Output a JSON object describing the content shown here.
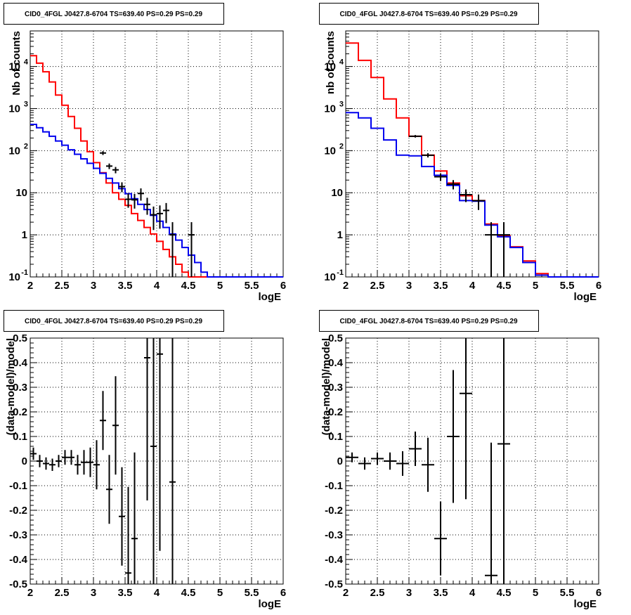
{
  "chart_data": [
    {
      "type": "step-histogram-with-errorbars",
      "title": "CID0_4FGL J0427.8-6704 TS=639.40 PS=0.29 PS=0.29",
      "xlabel": "logE",
      "ylabel": "Nb of counts",
      "xlim": [
        2,
        6
      ],
      "ylim": [
        0.1,
        70000
      ],
      "yscale": "log",
      "grid": true,
      "x_ticks": [
        "2",
        "2.5",
        "3",
        "3.5",
        "4",
        "4.5",
        "5",
        "5.5",
        "6"
      ],
      "y_ticks": [
        {
          "value": 0.1,
          "label": "10",
          "exp": "-1"
        },
        {
          "value": 1,
          "label": "1",
          "exp": ""
        },
        {
          "value": 10,
          "label": "10",
          "exp": ""
        },
        {
          "value": 100,
          "label": "10",
          "exp": "2"
        },
        {
          "value": 1000,
          "label": "10",
          "exp": "3"
        },
        {
          "value": 10000,
          "label": "10",
          "exp": "4"
        }
      ],
      "bin_edges": [
        2.0,
        2.1,
        2.2,
        2.3,
        2.4,
        2.5,
        2.6,
        2.7,
        2.8,
        2.9,
        3.0,
        3.1,
        3.2,
        3.3,
        3.4,
        3.5,
        3.6,
        3.7,
        3.8,
        3.9,
        4.0,
        4.1,
        4.2,
        4.3,
        4.4,
        4.5,
        4.6,
        4.7,
        4.8,
        4.9,
        5.0,
        5.1,
        5.2,
        5.3,
        5.4,
        5.5,
        5.6,
        5.7,
        5.8,
        5.9,
        6.0
      ],
      "series": [
        {
          "color": "#ff0000",
          "values": [
            18000,
            12000,
            7500,
            4300,
            2100,
            1200,
            650,
            340,
            170,
            95,
            52,
            30,
            17,
            10,
            7,
            5,
            3.2,
            2.2,
            1.5,
            1.05,
            0.7,
            0.45,
            0.3,
            0.2,
            0.13,
            0.1,
            0.1,
            0.1,
            0.1,
            0.1,
            0.1,
            0.1,
            0.1,
            0.1,
            0.1,
            0.1,
            0.1,
            0.1,
            0.1,
            0.1
          ]
        },
        {
          "color": "#0000ee",
          "values": [
            420,
            350,
            280,
            220,
            170,
            135,
            105,
            82,
            64,
            50,
            38,
            29,
            22,
            17,
            12.5,
            9.5,
            7.2,
            5.3,
            4,
            2.9,
            2.1,
            1.5,
            1.05,
            0.75,
            0.5,
            0.33,
            0.22,
            0.13,
            0.1,
            0.1,
            0.1,
            0.1,
            0.1,
            0.1,
            0.1,
            0.1,
            0.1,
            0.1,
            0.1,
            0.1
          ]
        }
      ],
      "points": [
        {
          "x": 3.15,
          "y": 88,
          "err": 9
        },
        {
          "x": 3.25,
          "y": 43,
          "err": 6.5
        },
        {
          "x": 3.35,
          "y": 35,
          "err": 6
        },
        {
          "x": 3.45,
          "y": 14,
          "err": 3.7
        },
        {
          "x": 3.55,
          "y": 7,
          "err": 2.6
        },
        {
          "x": 3.65,
          "y": 6.8,
          "err": 2.6
        },
        {
          "x": 3.75,
          "y": 9.6,
          "err": 3.1
        },
        {
          "x": 3.85,
          "y": 5.3,
          "err": 2.3
        },
        {
          "x": 3.95,
          "y": 3,
          "err": 1.7
        },
        {
          "x": 4.05,
          "y": 3.2,
          "err": 1.8
        },
        {
          "x": 4.15,
          "y": 3.8,
          "err": 1.9
        },
        {
          "x": 4.25,
          "y": 1,
          "err": 1
        },
        {
          "x": 4.55,
          "y": 1,
          "err": 1
        }
      ]
    },
    {
      "type": "step-histogram-with-errorbars",
      "title": "CID0_4FGL J0427.8-6704 TS=639.40 PS=0.29 PS=0.29",
      "xlabel": "logE",
      "ylabel": "nb of counts",
      "xlim": [
        2,
        6
      ],
      "ylim": [
        0.1,
        70000
      ],
      "yscale": "log",
      "grid": true,
      "x_ticks": [
        "2",
        "2.5",
        "3",
        "3.5",
        "4",
        "4.5",
        "5",
        "5.5",
        "6"
      ],
      "y_ticks": [
        {
          "value": 0.1,
          "label": "10",
          "exp": "-1"
        },
        {
          "value": 1,
          "label": "1",
          "exp": ""
        },
        {
          "value": 10,
          "label": "10",
          "exp": ""
        },
        {
          "value": 100,
          "label": "10",
          "exp": "2"
        },
        {
          "value": 1000,
          "label": "10",
          "exp": "3"
        },
        {
          "value": 10000,
          "label": "10",
          "exp": "4"
        }
      ],
      "bin_edges": [
        2.0,
        2.2,
        2.4,
        2.6,
        2.8,
        3.0,
        3.2,
        3.4,
        3.6,
        3.8,
        4.0,
        4.2,
        4.4,
        4.6,
        4.8,
        5.0,
        5.2,
        5.4,
        5.6,
        5.8,
        6.0
      ],
      "series": [
        {
          "color": "#ff0000",
          "values": [
            36000,
            14000,
            5500,
            1700,
            600,
            220,
            78,
            33,
            17,
            8.5,
            6.5,
            1.8,
            0.95,
            0.52,
            0.24,
            0.12,
            0.1,
            0.1,
            0.1,
            0.1
          ]
        },
        {
          "color": "#0000ee",
          "values": [
            800,
            600,
            340,
            180,
            78,
            75,
            42,
            26,
            15,
            6.5,
            6.3,
            1.7,
            0.9,
            0.5,
            0.22,
            0.11,
            0.1,
            0.1,
            0.1,
            0.1
          ]
        }
      ],
      "points": [
        {
          "x": 3.1,
          "y": 220,
          "err": 15
        },
        {
          "x": 3.3,
          "y": 78,
          "err": 9
        },
        {
          "x": 3.5,
          "y": 24,
          "err": 5
        },
        {
          "x": 3.7,
          "y": 16,
          "err": 4
        },
        {
          "x": 3.9,
          "y": 9,
          "err": 3
        },
        {
          "x": 4.1,
          "y": 6.5,
          "err": 2.6
        },
        {
          "x": 4.3,
          "y": 1,
          "err": 1
        },
        {
          "x": 4.5,
          "y": 1,
          "err": 1
        }
      ]
    },
    {
      "type": "errorbar",
      "title": "CID0_4FGL J0427.8-6704 TS=639.40 PS=0.29 PS=0.29",
      "xlabel": "logE",
      "ylabel": "(data-model)/model",
      "xlim": [
        2,
        6
      ],
      "ylim": [
        -0.5,
        0.5
      ],
      "grid": true,
      "x_ticks": [
        "2",
        "2.5",
        "3",
        "3.5",
        "4",
        "4.5",
        "5",
        "5.5",
        "6"
      ],
      "y_ticks": [
        "-0.5",
        "-0.4",
        "-0.3",
        "-0.2",
        "-0.1",
        "0",
        "0.1",
        "0.2",
        "0.3",
        "0.4",
        "0.5"
      ],
      "xerr": 0.05,
      "points": [
        {
          "x": 2.05,
          "y": 0.03,
          "err": 0.025
        },
        {
          "x": 2.15,
          "y": 0.0,
          "err": 0.025
        },
        {
          "x": 2.25,
          "y": -0.01,
          "err": 0.025
        },
        {
          "x": 2.35,
          "y": -0.015,
          "err": 0.025
        },
        {
          "x": 2.45,
          "y": 0.0,
          "err": 0.025
        },
        {
          "x": 2.55,
          "y": 0.015,
          "err": 0.03
        },
        {
          "x": 2.65,
          "y": 0.015,
          "err": 0.03
        },
        {
          "x": 2.75,
          "y": -0.015,
          "err": 0.04
        },
        {
          "x": 2.85,
          "y": -0.005,
          "err": 0.05
        },
        {
          "x": 2.95,
          "y": -0.005,
          "err": 0.06
        },
        {
          "x": 3.05,
          "y": -0.015,
          "err": 0.1
        },
        {
          "x": 3.15,
          "y": 0.165,
          "err": 0.12
        },
        {
          "x": 3.25,
          "y": -0.115,
          "err": 0.14
        },
        {
          "x": 3.35,
          "y": 0.145,
          "err": 0.2
        },
        {
          "x": 3.45,
          "y": -0.225,
          "err": 0.2
        },
        {
          "x": 3.55,
          "y": -0.455,
          "err": 0.35
        },
        {
          "x": 3.65,
          "y": -0.315,
          "err": 0.35
        },
        {
          "x": 3.85,
          "y": 0.42,
          "err": 0.58
        },
        {
          "x": 3.95,
          "y": 0.06,
          "err": 0.8
        },
        {
          "x": 4.05,
          "y": 0.435,
          "err": 0.8
        },
        {
          "x": 4.25,
          "y": -0.085,
          "err": 1.1
        }
      ]
    },
    {
      "type": "errorbar",
      "title": "CID0_4FGL J0427.8-6704 TS=639.40 PS=0.29 PS=0.29",
      "xlabel": "logE",
      "ylabel": "(data-model)/model",
      "xlim": [
        2,
        6
      ],
      "ylim": [
        -0.5,
        0.5
      ],
      "grid": true,
      "x_ticks": [
        "2",
        "2.5",
        "3",
        "3.5",
        "4",
        "4.5",
        "5",
        "5.5",
        "6"
      ],
      "y_ticks": [
        "-0.5",
        "-0.4",
        "-0.3",
        "-0.2",
        "-0.1",
        "0",
        "0.1",
        "0.2",
        "0.3",
        "0.4",
        "0.5"
      ],
      "xerr": 0.1,
      "points": [
        {
          "x": 2.1,
          "y": 0.015,
          "err": 0.02
        },
        {
          "x": 2.3,
          "y": -0.01,
          "err": 0.025
        },
        {
          "x": 2.5,
          "y": 0.01,
          "err": 0.025
        },
        {
          "x": 2.7,
          "y": 0.0,
          "err": 0.035
        },
        {
          "x": 2.9,
          "y": -0.01,
          "err": 0.05
        },
        {
          "x": 3.1,
          "y": 0.05,
          "err": 0.07
        },
        {
          "x": 3.3,
          "y": -0.015,
          "err": 0.11
        },
        {
          "x": 3.5,
          "y": -0.315,
          "err": 0.15
        },
        {
          "x": 3.7,
          "y": 0.1,
          "err": 0.27
        },
        {
          "x": 3.9,
          "y": 0.275,
          "err": 0.43
        },
        {
          "x": 4.3,
          "y": -0.465,
          "err": 0.54
        },
        {
          "x": 4.5,
          "y": 0.07,
          "err": 0.9
        }
      ]
    }
  ]
}
